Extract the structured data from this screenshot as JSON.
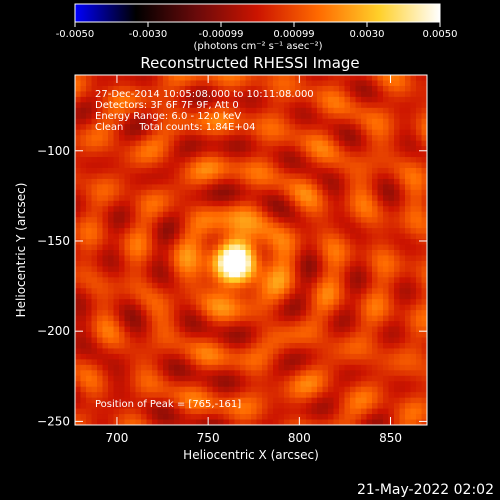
{
  "chart_data": {
    "type": "heatmap",
    "title": "Reconstructed RHESSI Image",
    "xlabel": "Heliocentric X (arcsec)",
    "ylabel": "Heliocentric Y (arcsec)",
    "xlim": [
      677,
      870
    ],
    "ylim": [
      -252,
      -58
    ],
    "xticks": [
      700,
      750,
      800,
      850
    ],
    "yticks": [
      -250,
      -200,
      -150,
      -100
    ],
    "colorbar": {
      "label": "(photons cm⁻² s⁻¹ asec⁻²)",
      "range": [
        -0.005,
        0.005
      ],
      "ticks": [
        "-0.0050",
        "-0.0030",
        "-0.00099",
        "0.00099",
        "0.0030",
        "0.0050"
      ],
      "colormap": [
        "#0000ff",
        "#000000",
        "#6a0a0a",
        "#cc1400",
        "#ff6a00",
        "#ffd02a",
        "#ffffff"
      ]
    },
    "annotations": [
      "27-Dec-2014 10:05:08.000 to 10:11:08.000",
      "Detectors: 3F 6F 7F 9F, Att 0",
      "Energy Range: 6.0 - 12.0 keV",
      "Clean     Total counts: 1.84E+04"
    ],
    "peak_label": "Position of Peak = [765,-161]",
    "peak": {
      "x": 765,
      "y": -161,
      "value": 0.005
    },
    "timestamp": "21-May-2022 02:02"
  }
}
